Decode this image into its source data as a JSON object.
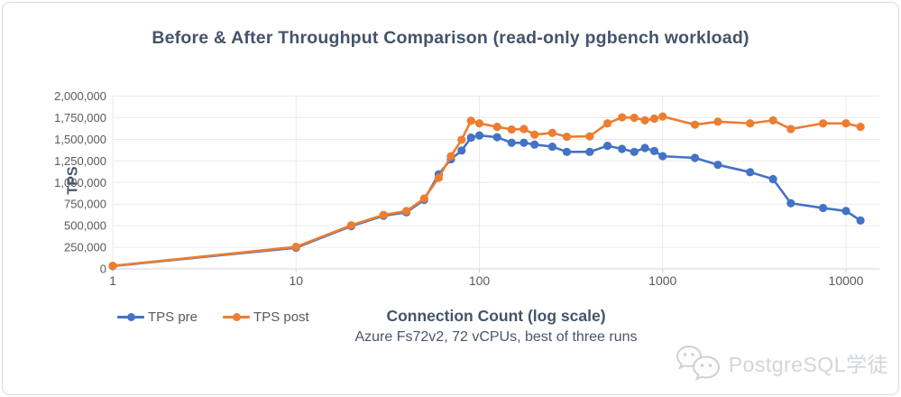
{
  "page": {
    "watermark_text": "PostgreSQL学徒"
  },
  "chart_data": {
    "type": "line",
    "title": "Before & After Throughput Comparison (read-only pgbench workload)",
    "xlabel": "Connection Count (log scale)",
    "xlabel_note": "Azure Fs72v2, 72 vCPUs, best of three runs",
    "ylabel": "TPS",
    "x_scale": "log",
    "grid": true,
    "legend_position": "bottom-left",
    "xlim": [
      1,
      15000
    ],
    "ylim": [
      0,
      2000000
    ],
    "x_ticks": [
      1,
      10,
      100,
      1000,
      10000
    ],
    "y_ticks": [
      0,
      250000,
      500000,
      750000,
      1000000,
      1250000,
      1500000,
      1750000,
      2000000
    ],
    "x": [
      1,
      10,
      20,
      30,
      40,
      50,
      60,
      70,
      80,
      90,
      100,
      125,
      150,
      175,
      200,
      250,
      300,
      400,
      500,
      600,
      700,
      800,
      900,
      1000,
      1500,
      2000,
      3000,
      4000,
      5000,
      7500,
      10000,
      12000
    ],
    "series": [
      {
        "name": "TPS pre",
        "color": "#4472C4",
        "values": [
          33000,
          245000,
          495000,
          615000,
          655000,
          800000,
          1095000,
          1270000,
          1370000,
          1520000,
          1545000,
          1525000,
          1460000,
          1460000,
          1440000,
          1415000,
          1355000,
          1355000,
          1425000,
          1390000,
          1355000,
          1400000,
          1365000,
          1305000,
          1285000,
          1205000,
          1120000,
          1040000,
          760000,
          705000,
          670000,
          560000
        ]
      },
      {
        "name": "TPS post",
        "color": "#ED7D31",
        "values": [
          35000,
          255000,
          505000,
          625000,
          670000,
          815000,
          1055000,
          1305000,
          1495000,
          1715000,
          1685000,
          1645000,
          1615000,
          1620000,
          1555000,
          1575000,
          1530000,
          1535000,
          1685000,
          1755000,
          1750000,
          1720000,
          1740000,
          1765000,
          1670000,
          1705000,
          1685000,
          1720000,
          1620000,
          1685000,
          1685000,
          1645000
        ]
      }
    ]
  },
  "colors": {
    "title": "#44546A",
    "axis_text": "#595959",
    "gridline": "#e8eaed",
    "axis_line": "#cfd3d9",
    "watermark": "#d2d5d9"
  }
}
